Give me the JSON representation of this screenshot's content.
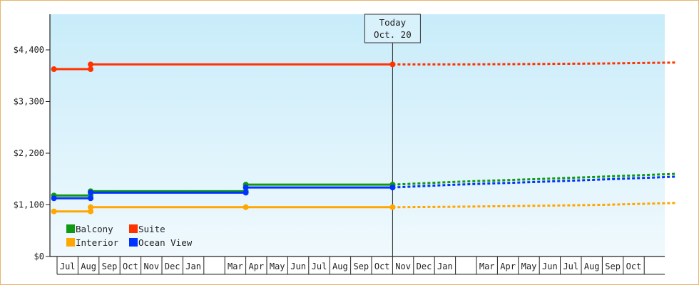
{
  "chart_data": {
    "type": "line",
    "title": "",
    "xlabel": "",
    "ylabel": "",
    "y_ticks": [
      {
        "value": 0,
        "label": "$0"
      },
      {
        "value": 1100,
        "label": "$1,100"
      },
      {
        "value": 2200,
        "label": "$2,200"
      },
      {
        "value": 3300,
        "label": "$3,300"
      },
      {
        "value": 4400,
        "label": "$4,400"
      }
    ],
    "ylim": [
      0,
      5100
    ],
    "x_range": [
      0,
      29
    ],
    "x_month_labels": [
      {
        "i": 1,
        "label": "Jul"
      },
      {
        "i": 2,
        "label": "Aug"
      },
      {
        "i": 3,
        "label": "Sep"
      },
      {
        "i": 4,
        "label": "Oct"
      },
      {
        "i": 5,
        "label": "Nov"
      },
      {
        "i": 6,
        "label": "Dec"
      },
      {
        "i": 7,
        "label": "Jan"
      },
      {
        "i": 9,
        "label": "Mar"
      },
      {
        "i": 10,
        "label": "Apr"
      },
      {
        "i": 11,
        "label": "May"
      },
      {
        "i": 12,
        "label": "Jun"
      },
      {
        "i": 13,
        "label": "Jul"
      },
      {
        "i": 14,
        "label": "Aug"
      },
      {
        "i": 15,
        "label": "Sep"
      },
      {
        "i": 16,
        "label": "Oct"
      },
      {
        "i": 17,
        "label": "Nov"
      },
      {
        "i": 18,
        "label": "Dec"
      },
      {
        "i": 19,
        "label": "Jan"
      },
      {
        "i": 21,
        "label": "Mar"
      },
      {
        "i": 22,
        "label": "Apr"
      },
      {
        "i": 23,
        "label": "May"
      },
      {
        "i": 24,
        "label": "Jun"
      },
      {
        "i": 25,
        "label": "Jul"
      },
      {
        "i": 26,
        "label": "Aug"
      },
      {
        "i": 27,
        "label": "Sep"
      },
      {
        "i": 28,
        "label": "Oct"
      }
    ],
    "x_month_dividers": [
      1,
      2,
      3,
      4,
      5,
      6,
      7,
      8,
      9,
      10,
      11,
      12,
      13,
      14,
      15,
      16,
      17,
      18,
      19,
      20,
      21,
      22,
      23,
      24,
      25,
      26,
      27,
      28,
      29
    ],
    "today": {
      "x": 16.0,
      "line1": "Today",
      "line2": "Oct. 20"
    },
    "grid": false,
    "legend_position": "bottom-left",
    "series": [
      {
        "name": "Suite",
        "color": "#ff3300",
        "historical": [
          [
            -0.15,
            3990
          ],
          [
            1.6,
            3990
          ],
          [
            1.6,
            4090
          ],
          [
            16.0,
            4090
          ]
        ],
        "markers": [
          [
            -0.15,
            3990
          ],
          [
            1.6,
            3990
          ],
          [
            1.6,
            4090
          ],
          [
            16.0,
            4090
          ]
        ],
        "forecast": [
          [
            16.0,
            4090
          ],
          [
            19,
            4090
          ],
          [
            23,
            4100
          ],
          [
            26,
            4110
          ],
          [
            29.5,
            4130
          ]
        ]
      },
      {
        "name": "Balcony",
        "color": "#119911",
        "historical": [
          [
            -0.15,
            1300
          ],
          [
            1.6,
            1300
          ],
          [
            1.6,
            1390
          ],
          [
            9.0,
            1390
          ],
          [
            9.0,
            1530
          ],
          [
            16.0,
            1530
          ]
        ],
        "markers": [
          [
            -0.15,
            1300
          ],
          [
            1.6,
            1300
          ],
          [
            1.6,
            1390
          ],
          [
            9.0,
            1390
          ],
          [
            9.0,
            1530
          ],
          [
            16.0,
            1530
          ]
        ],
        "forecast": [
          [
            16.0,
            1530
          ],
          [
            19,
            1590
          ],
          [
            23,
            1650
          ],
          [
            26,
            1700
          ],
          [
            29.5,
            1760
          ]
        ]
      },
      {
        "name": "Ocean View",
        "color": "#0033ff",
        "historical": [
          [
            -0.15,
            1240
          ],
          [
            1.6,
            1240
          ],
          [
            1.6,
            1360
          ],
          [
            9.0,
            1360
          ],
          [
            9.0,
            1470
          ],
          [
            16.0,
            1470
          ]
        ],
        "markers": [
          [
            -0.15,
            1240
          ],
          [
            1.6,
            1240
          ],
          [
            1.6,
            1360
          ],
          [
            9.0,
            1360
          ],
          [
            9.0,
            1470
          ],
          [
            16.0,
            1470
          ]
        ],
        "forecast": [
          [
            16.0,
            1470
          ],
          [
            19,
            1530
          ],
          [
            23,
            1590
          ],
          [
            26,
            1640
          ],
          [
            29.5,
            1700
          ]
        ]
      },
      {
        "name": "Interior",
        "color": "#ffa600",
        "historical": [
          [
            -0.15,
            960
          ],
          [
            1.6,
            960
          ],
          [
            1.6,
            1050
          ],
          [
            9.0,
            1050
          ],
          [
            16.0,
            1050
          ]
        ],
        "markers": [
          [
            -0.15,
            960
          ],
          [
            1.6,
            960
          ],
          [
            1.6,
            1050
          ],
          [
            9.0,
            1050
          ],
          [
            16.0,
            1050
          ]
        ],
        "forecast": [
          [
            16.0,
            1050
          ],
          [
            19,
            1060
          ],
          [
            23,
            1080
          ],
          [
            26,
            1100
          ],
          [
            29.5,
            1140
          ]
        ]
      }
    ],
    "legend": [
      {
        "name": "Balcony",
        "color": "#119911"
      },
      {
        "name": "Suite",
        "color": "#ff3300"
      },
      {
        "name": "Interior",
        "color": "#ffa600"
      },
      {
        "name": "Ocean View",
        "color": "#0033ff"
      }
    ]
  }
}
